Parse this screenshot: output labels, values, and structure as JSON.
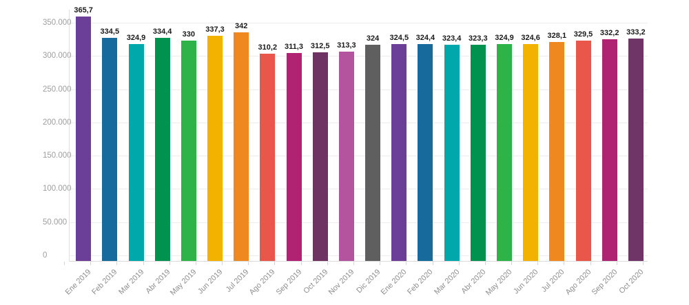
{
  "chart_data": {
    "type": "bar",
    "title": "",
    "categories": [
      "Ene 2019",
      "Feb 2019",
      "Mar 2019",
      "Abr 2019",
      "May 2019",
      "Jun 2019",
      "Jul 2019",
      "Ago 2019",
      "Sep 2019",
      "Oct 2019",
      "Nov 2019",
      "Dic 2019",
      "Ene 2020",
      "Feb 2020",
      "Mar 2020",
      "Abr 2020",
      "May 2020",
      "Jun 2020",
      "Jul 2020",
      "Ago 2020",
      "Sep 2020",
      "Oct 2020"
    ],
    "values": [
      365.7,
      334.5,
      324.9,
      334.4,
      330,
      337.3,
      342,
      310.2,
      311.3,
      312.5,
      313.3,
      324,
      324.5,
      324.4,
      323.4,
      323.3,
      324.9,
      324.6,
      328.1,
      329.5,
      332.2,
      333.2
    ],
    "value_labels": [
      "365,7",
      "334,5",
      "324,9",
      "334,4",
      "330",
      "337,3",
      "342",
      "310,2",
      "311,3",
      "312,5",
      "313,3",
      "324",
      "324,5",
      "324,4",
      "323,4",
      "323,3",
      "324,9",
      "324,6",
      "328,1",
      "329,5",
      "332,2",
      "333,2"
    ],
    "bar_colors": [
      "#6B3E98",
      "#176A9C",
      "#00A8AC",
      "#00924E",
      "#2DB347",
      "#F4B200",
      "#EE881F",
      "#E9564A",
      "#B02372",
      "#6E3263",
      "#B4549F",
      "#5F5F5F",
      "#6B3E98",
      "#176A9C",
      "#00A8AC",
      "#00924E",
      "#2DB347",
      "#F4B200",
      "#EE881F",
      "#E9564A",
      "#B02372",
      "#6E3566"
    ],
    "y_axis": {
      "tick_labels": [
        "0",
        "50.000",
        "100.000",
        "150.000",
        "200.000",
        "250.000",
        "300.000",
        "350.000"
      ],
      "min": 0,
      "max": 350000,
      "step": 50000,
      "implied_value_multiplier": 1000
    },
    "x_axis": {
      "label_rotation_deg": -45
    },
    "grid": true,
    "legend": false
  },
  "colors": {
    "background": "#FFFFFF",
    "gridline": "#EDEDED",
    "axis": "#D9D9D9",
    "y_label_text": "#9E9E9E",
    "x_label_text": "#8E8E8E",
    "value_label_text": "#1A1A1A"
  }
}
